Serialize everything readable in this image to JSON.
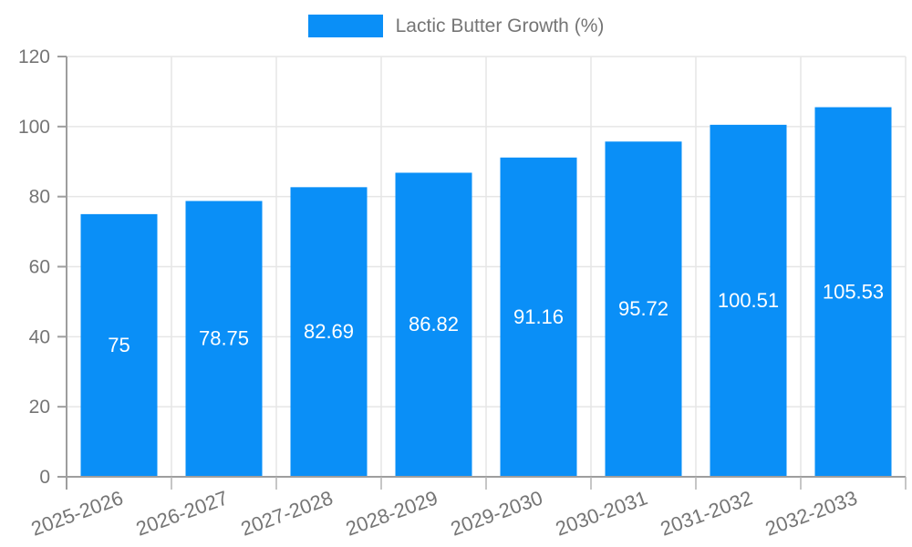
{
  "chart_data": {
    "type": "bar",
    "title": "",
    "series_name": "Lactic Butter Growth (%)",
    "categories": [
      "2025-2026",
      "2026-2027",
      "2027-2028",
      "2028-2029",
      "2029-2030",
      "2030-2031",
      "2031-2032",
      "2032-2033"
    ],
    "values": [
      75,
      78.75,
      82.69,
      86.82,
      91.16,
      95.72,
      100.51,
      105.53
    ],
    "value_labels": [
      "75",
      "78.75",
      "82.69",
      "86.82",
      "91.16",
      "95.72",
      "100.51",
      "105.53"
    ],
    "xlabel": "",
    "ylabel": "",
    "ylim": [
      0,
      120
    ],
    "yticks": [
      0,
      20,
      40,
      60,
      80,
      100,
      120
    ],
    "grid": true,
    "legend_position": "top-center",
    "x_label_rotation_deg": -20,
    "colors": {
      "bar": "#0a8ff7",
      "bar_value_label": "#ffffff",
      "axis": "#9e9e9e",
      "grid": "#e6e6e6",
      "tick_mark": "#b3b3b3",
      "tick_label": "#757575",
      "legend_text": "#757575",
      "background": "#ffffff"
    }
  }
}
